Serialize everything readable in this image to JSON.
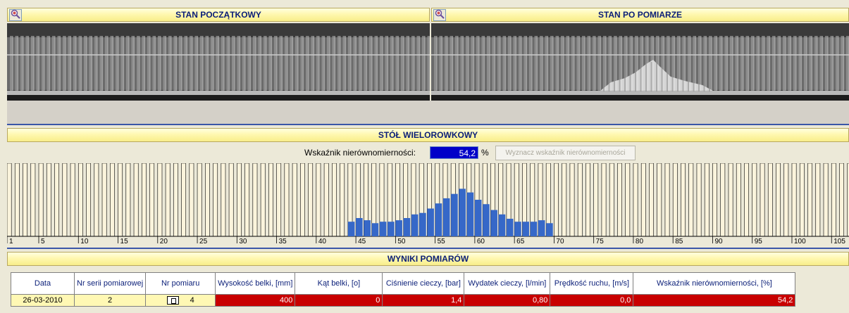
{
  "panels": {
    "initial": {
      "title": "STAN POCZĄTKOWY"
    },
    "after": {
      "title": "STAN PO POMIARZE"
    }
  },
  "multi_channel_table": {
    "title": "STÓŁ WIELOROWKOWY",
    "ratio_label": "Wskaźnik nierównomierności:",
    "ratio_value": "54,2",
    "ratio_unit": "%",
    "compute_button": "Wyznacz wskaźnik nierównomierności"
  },
  "chart_data": {
    "type": "bar",
    "x_ticks": [
      1,
      5,
      10,
      15,
      20,
      25,
      30,
      35,
      40,
      45,
      50,
      55,
      60,
      65,
      70,
      75,
      80,
      85,
      90,
      95,
      100,
      105
    ],
    "channel_count": 107,
    "fill_color": "#3668c8",
    "channels": [
      44,
      45,
      46,
      47,
      48,
      49,
      50,
      51,
      52,
      53,
      54,
      55,
      56,
      57,
      58,
      59,
      60,
      61,
      62,
      63,
      64,
      65,
      66,
      67,
      68,
      69
    ],
    "values": [
      0.2,
      0.25,
      0.22,
      0.18,
      0.2,
      0.2,
      0.22,
      0.25,
      0.3,
      0.32,
      0.38,
      0.45,
      0.52,
      0.58,
      0.65,
      0.6,
      0.5,
      0.44,
      0.36,
      0.3,
      0.24,
      0.2,
      0.2,
      0.2,
      0.22,
      0.18
    ]
  },
  "results": {
    "title": "WYNIKI POMIARÓW",
    "headers": [
      "Data",
      "Nr serii pomiarowej",
      "Nr pomiaru",
      "Wysokość belki, [mm]",
      "Kąt belki, [o]",
      "Ciśnienie cieczy, [bar]",
      "Wydatek cieczy, [l/min]",
      "Prędkość ruchu, [m/s]",
      "Wskaźnik nierównomierności, [%]"
    ],
    "row": {
      "date": "26-03-2010",
      "series": "2",
      "measurement": "4",
      "beam_height": "400",
      "beam_angle": "0",
      "pressure": "1,4",
      "flow": "0,80",
      "speed": "0,0",
      "ratio": "54,2"
    }
  }
}
